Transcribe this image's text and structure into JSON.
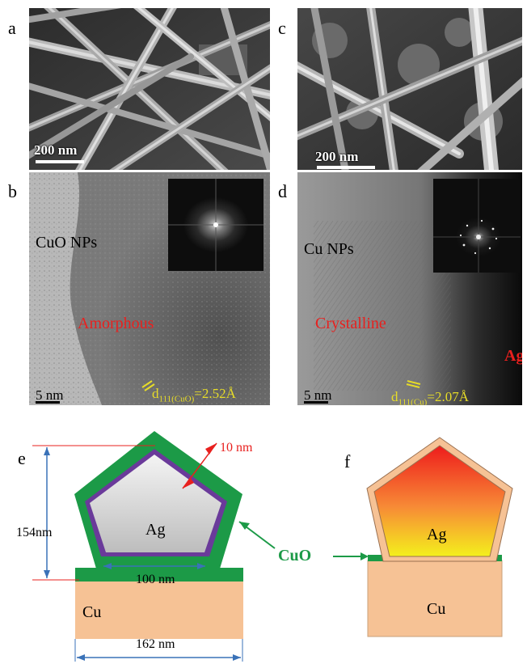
{
  "panels": {
    "a": {
      "label": "a",
      "scale": "200 nm"
    },
    "b": {
      "label": "b",
      "material": "CuO NPs",
      "phase": "Amorphous",
      "scale": "5 nm",
      "d_main": "d",
      "d_sub": "111(CuO)",
      "d_val": "=2.52Å"
    },
    "c": {
      "label": "c",
      "scale": "200 nm"
    },
    "d": {
      "label": "d",
      "material": "Cu NPs",
      "phase": "Crystalline",
      "corner": "Ag",
      "scale": "5 nm",
      "d_main": "d",
      "d_sub": "111(Cu)",
      "d_val": "=2.07Å"
    },
    "e": {
      "label": "e",
      "ag": "Ag",
      "cu": "Cu",
      "thickness": "10 nm",
      "height": "154nm",
      "base": "100 nm",
      "width": "162 nm"
    },
    "f": {
      "label": "f",
      "ag": "Ag",
      "cu": "Cu"
    },
    "shared": {
      "cuo": "CuO"
    }
  },
  "colors": {
    "accent_red": "#e8201e",
    "tem_yellow": "#e6dc28",
    "cuo_green": "#1c9a47",
    "cu_tan": "#f6c295",
    "interlayer_purple": "#6a3a9a",
    "dim_blue": "#3a72b8"
  }
}
